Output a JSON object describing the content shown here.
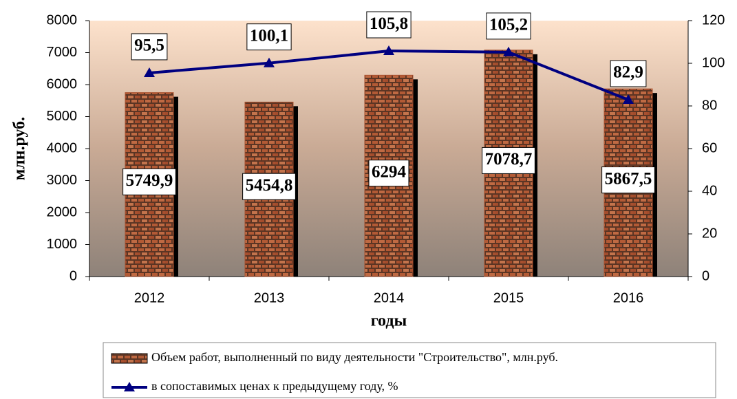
{
  "chart_data": {
    "type": "bar",
    "categories": [
      "2012",
      "2013",
      "2014",
      "2015",
      "2016"
    ],
    "x_label": "годы",
    "y_label": "млн.руб.",
    "ylim": [
      0,
      8000
    ],
    "yticks": [
      0,
      1000,
      2000,
      3000,
      4000,
      5000,
      6000,
      7000,
      8000
    ],
    "y2lim": [
      0,
      120
    ],
    "y2ticks": [
      0,
      20,
      40,
      60,
      80,
      100,
      120
    ],
    "grid": false,
    "legend": "bottom",
    "series": [
      {
        "name": "Объем работ, выполненный по виду деятельности \"Строительство\", млн.руб.",
        "type": "bar",
        "color": "#a9512f",
        "values": [
          5749.9,
          5454.8,
          6294,
          7078.7,
          5867.5
        ],
        "value_labels": [
          "5749,9",
          "5454,8",
          "6294",
          "7078,7",
          "5867,5"
        ]
      },
      {
        "name": "в сопоставимых ценах к предыдущему году, %",
        "type": "line",
        "axis": "y2",
        "color": "#000080",
        "values": [
          95.5,
          100.1,
          105.8,
          105.2,
          82.9
        ],
        "value_labels": [
          "95,5",
          "100,1",
          "105,8",
          "105,2",
          "82,9"
        ]
      }
    ]
  }
}
